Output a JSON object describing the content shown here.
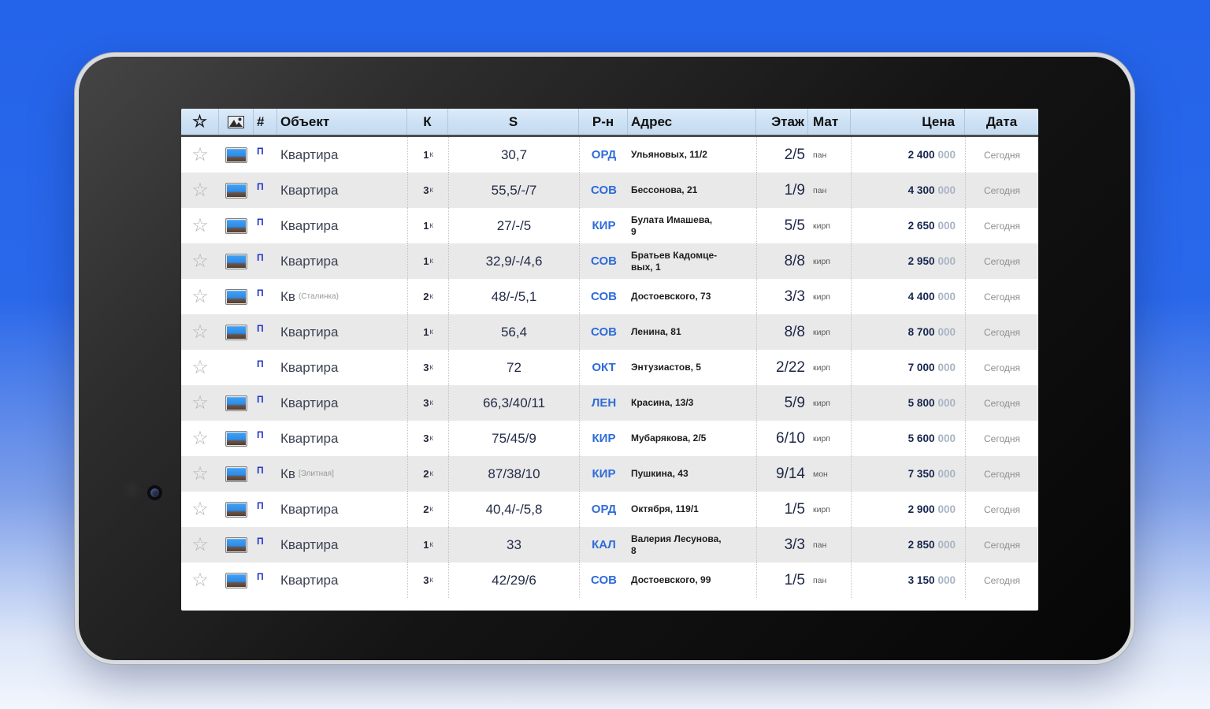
{
  "colors": {
    "background_blue": "#2464ea",
    "header_bg": "#cbe0f4",
    "row_alt_bg": "#e9e9e9",
    "district_link_blue": "#2f6cd8",
    "price_navy": "#16254e",
    "flag_blue": "#2236c8"
  },
  "header": {
    "favorite_label": "☆",
    "photo_label": "photo",
    "number_label": "#",
    "object_label": "Объект",
    "rooms_label": "К",
    "area_label": "S",
    "district_label": "Р-н",
    "address_label": "Адрес",
    "floor_label": "Этаж",
    "material_label": "Мат",
    "price_label": "Цена",
    "date_label": "Дата"
  },
  "rows": [
    {
      "favorite": "☆",
      "has_photo": true,
      "flag": "П",
      "object": "Квартира",
      "object_note": "",
      "rooms": "1",
      "rooms_suffix": "к",
      "area": "30,7",
      "district": "ОРД",
      "address": "Ульяновых, 11/2",
      "floor": "2/5",
      "material": "пан",
      "price_main": "2 400",
      "price_zeros": "000",
      "date": "Сегодня"
    },
    {
      "favorite": "☆",
      "has_photo": true,
      "flag": "П",
      "object": "Квартира",
      "object_note": "",
      "rooms": "3",
      "rooms_suffix": "к",
      "area": "55,5/-/7",
      "district": "СОВ",
      "address": "Бессонова, 21",
      "floor": "1/9",
      "material": "пан",
      "price_main": "4 300",
      "price_zeros": "000",
      "date": "Сегодня"
    },
    {
      "favorite": "☆",
      "has_photo": true,
      "flag": "П",
      "object": "Квартира",
      "object_note": "",
      "rooms": "1",
      "rooms_suffix": "к",
      "area": "27/-/5",
      "district": "КИР",
      "address": "Булата Имашева,\n9",
      "floor": "5/5",
      "material": "кирп",
      "price_main": "2 650",
      "price_zeros": "000",
      "date": "Сегодня"
    },
    {
      "favorite": "☆",
      "has_photo": true,
      "flag": "П",
      "object": "Квартира",
      "object_note": "",
      "rooms": "1",
      "rooms_suffix": "к",
      "area": "32,9/-/4,6",
      "district": "СОВ",
      "address": "Братьев Кадомце-\nвых, 1",
      "floor": "8/8",
      "material": "кирп",
      "price_main": "2 950",
      "price_zeros": "000",
      "date": "Сегодня"
    },
    {
      "favorite": "☆",
      "has_photo": true,
      "flag": "П",
      "object": "Кв",
      "object_note": "(Сталинка)",
      "rooms": "2",
      "rooms_suffix": "к",
      "area": "48/-/5,1",
      "district": "СОВ",
      "address": "Достоевского, 73",
      "floor": "3/3",
      "material": "кирп",
      "price_main": "4 400",
      "price_zeros": "000",
      "date": "Сегодня"
    },
    {
      "favorite": "☆",
      "has_photo": true,
      "flag": "П",
      "object": "Квартира",
      "object_note": "",
      "rooms": "1",
      "rooms_suffix": "к",
      "area": "56,4",
      "district": "СОВ",
      "address": "Ленина, 81",
      "floor": "8/8",
      "material": "кирп",
      "price_main": "8 700",
      "price_zeros": "000",
      "date": "Сегодня"
    },
    {
      "favorite": "☆",
      "has_photo": false,
      "flag": "П",
      "object": "Квартира",
      "object_note": "",
      "rooms": "3",
      "rooms_suffix": "к",
      "area": "72",
      "district": "ОКТ",
      "address": "Энтузиастов, 5",
      "floor": "2/22",
      "material": "кирп",
      "price_main": "7 000",
      "price_zeros": "000",
      "date": "Сегодня"
    },
    {
      "favorite": "☆",
      "has_photo": true,
      "flag": "П",
      "object": "Квартира",
      "object_note": "",
      "rooms": "3",
      "rooms_suffix": "к",
      "area": "66,3/40/11",
      "district": "ЛЕН",
      "address": "Красина, 13/3",
      "floor": "5/9",
      "material": "кирп",
      "price_main": "5 800",
      "price_zeros": "000",
      "date": "Сегодня"
    },
    {
      "favorite": "☆",
      "has_photo": true,
      "flag": "П",
      "object": "Квартира",
      "object_note": "",
      "rooms": "3",
      "rooms_suffix": "к",
      "area": "75/45/9",
      "district": "КИР",
      "address": "Мубарякова, 2/5",
      "floor": "6/10",
      "material": "кирп",
      "price_main": "5 600",
      "price_zeros": "000",
      "date": "Сегодня"
    },
    {
      "favorite": "☆",
      "has_photo": true,
      "flag": "П",
      "object": "Кв",
      "object_note": "[Элитная]",
      "rooms": "2",
      "rooms_suffix": "к",
      "area": "87/38/10",
      "district": "КИР",
      "address": "Пушкина, 43",
      "floor": "9/14",
      "material": "мон",
      "price_main": "7 350",
      "price_zeros": "000",
      "date": "Сегодня"
    },
    {
      "favorite": "☆",
      "has_photo": true,
      "flag": "П",
      "object": "Квартира",
      "object_note": "",
      "rooms": "2",
      "rooms_suffix": "к",
      "area": "40,4/-/5,8",
      "district": "ОРД",
      "address": "Октября, 119/1",
      "floor": "1/5",
      "material": "кирп",
      "price_main": "2 900",
      "price_zeros": "000",
      "date": "Сегодня"
    },
    {
      "favorite": "☆",
      "has_photo": true,
      "flag": "П",
      "object": "Квартира",
      "object_note": "",
      "rooms": "1",
      "rooms_suffix": "к",
      "area": "33",
      "district": "КАЛ",
      "address": "Валерия Лесунова,\n8",
      "floor": "3/3",
      "material": "пан",
      "price_main": "2 850",
      "price_zeros": "000",
      "date": "Сегодня"
    },
    {
      "favorite": "☆",
      "has_photo": true,
      "flag": "П",
      "object": "Квартира",
      "object_note": "",
      "rooms": "3",
      "rooms_suffix": "к",
      "area": "42/29/6",
      "district": "СОВ",
      "address": "Достоевского, 99",
      "floor": "1/5",
      "material": "пан",
      "price_main": "3 150",
      "price_zeros": "000",
      "date": "Сегодня"
    }
  ]
}
